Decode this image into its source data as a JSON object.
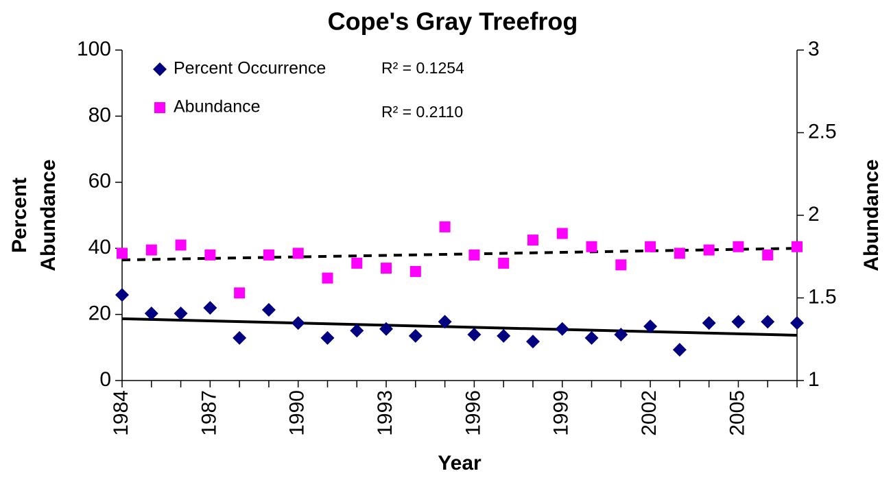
{
  "chart_data": {
    "type": "scatter",
    "title": "Cope's Gray Treefrog",
    "x_label": "Year",
    "y_label": [
      "Percent",
      "Abundance"
    ],
    "y2_label": "Abundance",
    "x": [
      1984,
      1985,
      1986,
      1987,
      1988,
      1989,
      1990,
      1991,
      1992,
      1993,
      1994,
      1995,
      1996,
      1997,
      1998,
      1999,
      2000,
      2001,
      2002,
      2003,
      2004,
      2005,
      2006,
      2007
    ],
    "xlim": [
      1984,
      2007
    ],
    "xticks": [
      1984,
      1987,
      1990,
      1993,
      1996,
      1999,
      2002,
      2005
    ],
    "ylim": [
      0,
      100
    ],
    "yticks": [
      0,
      20,
      40,
      60,
      80,
      100
    ],
    "y2lim": [
      1,
      3
    ],
    "y2ticks": [
      1,
      1.5,
      2,
      2.5,
      3
    ],
    "legend": "top-left",
    "series": [
      {
        "name": "Percent Occurrence",
        "color": "#000080",
        "marker": "diamond",
        "values": [
          25.9,
          20.3,
          20.3,
          22.0,
          12.9,
          21.4,
          17.4,
          12.9,
          15.1,
          15.6,
          13.5,
          17.8,
          13.9,
          13.5,
          11.8,
          15.6,
          12.9,
          13.9,
          16.4,
          9.3,
          17.4,
          17.8,
          17.8,
          17.4
        ],
        "trend": [
          18.7,
          13.7
        ],
        "trend_style": "solid",
        "r2_label": "R² = 0.1254"
      },
      {
        "name": "Abundance",
        "color": "#ff00ff",
        "marker": "square",
        "axis": "y2",
        "values": [
          1.77,
          1.79,
          1.82,
          1.76,
          1.53,
          1.76,
          1.77,
          1.62,
          1.71,
          1.68,
          1.66,
          1.93,
          1.76,
          1.71,
          1.85,
          1.89,
          1.81,
          1.7,
          1.81,
          1.77,
          1.79,
          1.81,
          1.76,
          1.81
        ],
        "trend": [
          1.73,
          1.8
        ],
        "trend_style": "dashed",
        "r2_label": "R² = 0.2110"
      }
    ]
  }
}
